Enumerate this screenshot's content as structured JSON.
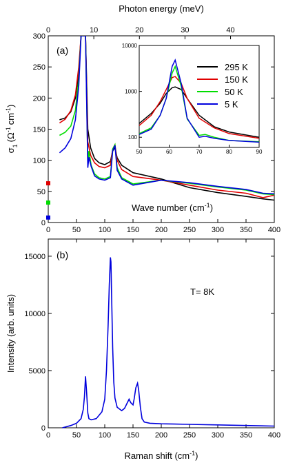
{
  "chart_data": [
    {
      "panel_label": "(a)",
      "type": "line",
      "xlabel": "Wave number (cm",
      "xlabel_sup": "-1",
      "xlabel_tail": ")",
      "ylabel": "σ",
      "ylabel_sub": "1",
      "ylabel_units": "(Ω",
      "ylabel_sup1": "-1",
      "ylabel_units2": "cm",
      "ylabel_sup2": "-1",
      "ylabel_tail": ")",
      "top_xlabel": "Photon energy (meV)",
      "top_xticks": [
        0,
        10,
        20,
        30,
        40
      ],
      "xlim": [
        0,
        400
      ],
      "ylim": [
        0,
        300
      ],
      "xticks": [
        0,
        50,
        100,
        150,
        200,
        250,
        300,
        350,
        400
      ],
      "yticks": [
        0,
        50,
        100,
        150,
        200,
        250,
        300
      ],
      "series": [
        {
          "name": "295 K",
          "color": "#000000",
          "dc": null,
          "x": [
            20,
            30,
            40,
            48,
            54,
            58,
            62,
            66,
            70,
            75,
            82,
            90,
            100,
            110,
            114,
            118,
            122,
            130,
            150,
            200,
            250,
            300,
            350,
            380,
            400
          ],
          "y": [
            165,
            168,
            178,
            200,
            240,
            300,
            300,
            300,
            150,
            120,
            103,
            96,
            93,
            98,
            115,
            120,
            104,
            92,
            80,
            70,
            56,
            48,
            42,
            38,
            36
          ]
        },
        {
          "name": "150 K",
          "color": "#e00000",
          "dc": 63,
          "x": [
            20,
            30,
            40,
            48,
            54,
            58,
            62,
            66,
            70,
            75,
            82,
            90,
            100,
            110,
            114,
            118,
            122,
            130,
            150,
            200,
            250,
            300,
            350,
            380,
            400
          ],
          "y": [
            160,
            166,
            180,
            205,
            250,
            300,
            300,
            300,
            130,
            108,
            96,
            90,
            88,
            92,
            118,
            125,
            100,
            85,
            74,
            68,
            60,
            52,
            47,
            40,
            44
          ]
        },
        {
          "name": "50 K",
          "color": "#00dd00",
          "dc": 32,
          "x": [
            20,
            30,
            40,
            48,
            54,
            58,
            62,
            66,
            70,
            72,
            76,
            82,
            90,
            100,
            110,
            114,
            118,
            122,
            130,
            150,
            200,
            250,
            300,
            350,
            380,
            400
          ],
          "y": [
            140,
            145,
            155,
            180,
            230,
            300,
            300,
            300,
            95,
            115,
            92,
            78,
            72,
            70,
            74,
            118,
            125,
            88,
            72,
            62,
            68,
            63,
            57,
            52,
            46,
            45
          ]
        },
        {
          "name": "5 K",
          "color": "#0000dd",
          "dc": 8,
          "x": [
            20,
            30,
            40,
            48,
            54,
            58,
            62,
            66,
            70,
            72,
            76,
            82,
            90,
            100,
            110,
            114,
            118,
            122,
            130,
            150,
            200,
            250,
            300,
            350,
            380,
            400
          ],
          "y": [
            112,
            120,
            135,
            165,
            220,
            300,
            300,
            300,
            88,
            105,
            90,
            75,
            70,
            68,
            72,
            115,
            124,
            84,
            70,
            60,
            68,
            64,
            58,
            53,
            47,
            46
          ]
        }
      ],
      "inset": {
        "scale": "log",
        "xlim": [
          50,
          90
        ],
        "ylim": [
          60,
          10000
        ],
        "xticks": [
          50,
          60,
          70,
          80,
          90
        ],
        "yticks": [
          100,
          1000,
          10000
        ],
        "series": [
          {
            "name": "295 K",
            "color": "#000000",
            "x": [
              50,
              54,
              57,
              59,
              61,
              62,
              64,
              66,
              70,
              75,
              80,
              90
            ],
            "y": [
              200,
              330,
              550,
              900,
              1200,
              1250,
              1100,
              700,
              300,
              170,
              130,
              100
            ]
          },
          {
            "name": "150 K",
            "color": "#e00000",
            "x": [
              50,
              54,
              57,
              59,
              61,
              62,
              64,
              66,
              70,
              75,
              80,
              90
            ],
            "y": [
              180,
              300,
              600,
              1100,
              2000,
              2100,
              1500,
              700,
              260,
              160,
              120,
              95
            ]
          },
          {
            "name": "50 K",
            "color": "#00dd00",
            "x": [
              50,
              54,
              57,
              59,
              61,
              62,
              64,
              66,
              70,
              72,
              75,
              80,
              90
            ],
            "y": [
              120,
              160,
              300,
              700,
              2500,
              3500,
              1300,
              250,
              110,
              115,
              100,
              85,
              80
            ]
          },
          {
            "name": "5 K",
            "color": "#0000dd",
            "x": [
              50,
              54,
              57,
              59,
              61,
              62,
              64,
              66,
              70,
              72,
              75,
              80,
              90
            ],
            "y": [
              115,
              150,
              300,
              700,
              3500,
              4800,
              1500,
              260,
              100,
              105,
              95,
              85,
              78
            ]
          }
        ]
      }
    },
    {
      "panel_label": "(b)",
      "type": "line",
      "annotation": "T= 8K",
      "xlabel": "Raman shift (cm",
      "xlabel_sup": "-1",
      "xlabel_tail": ")",
      "ylabel": "Intensity (arb. units)",
      "xlim": [
        0,
        400
      ],
      "ylim": [
        0,
        16500
      ],
      "xticks": [
        0,
        50,
        100,
        150,
        200,
        250,
        300,
        350,
        400
      ],
      "yticks": [
        0,
        5000,
        10000,
        15000
      ],
      "series": [
        {
          "name": "",
          "color": "#0000dd",
          "x": [
            25,
            40,
            50,
            58,
            62,
            64,
            66,
            68,
            70,
            72,
            76,
            85,
            95,
            100,
            103,
            106,
            108,
            110,
            111,
            112,
            114,
            116,
            118,
            122,
            130,
            135,
            140,
            143,
            146,
            150,
            152,
            155,
            158,
            160,
            163,
            166,
            170,
            180,
            200,
            250,
            300,
            350,
            400
          ],
          "y": [
            0,
            200,
            400,
            800,
            1600,
            2700,
            4500,
            3000,
            1300,
            800,
            700,
            800,
            1400,
            2500,
            5000,
            9000,
            12500,
            14900,
            14500,
            12000,
            7000,
            4000,
            2600,
            1800,
            1500,
            1700,
            2200,
            2500,
            2200,
            2000,
            2500,
            3500,
            3900,
            3300,
            1800,
            800,
            500,
            400,
            350,
            300,
            250,
            200,
            150
          ]
        }
      ]
    }
  ]
}
